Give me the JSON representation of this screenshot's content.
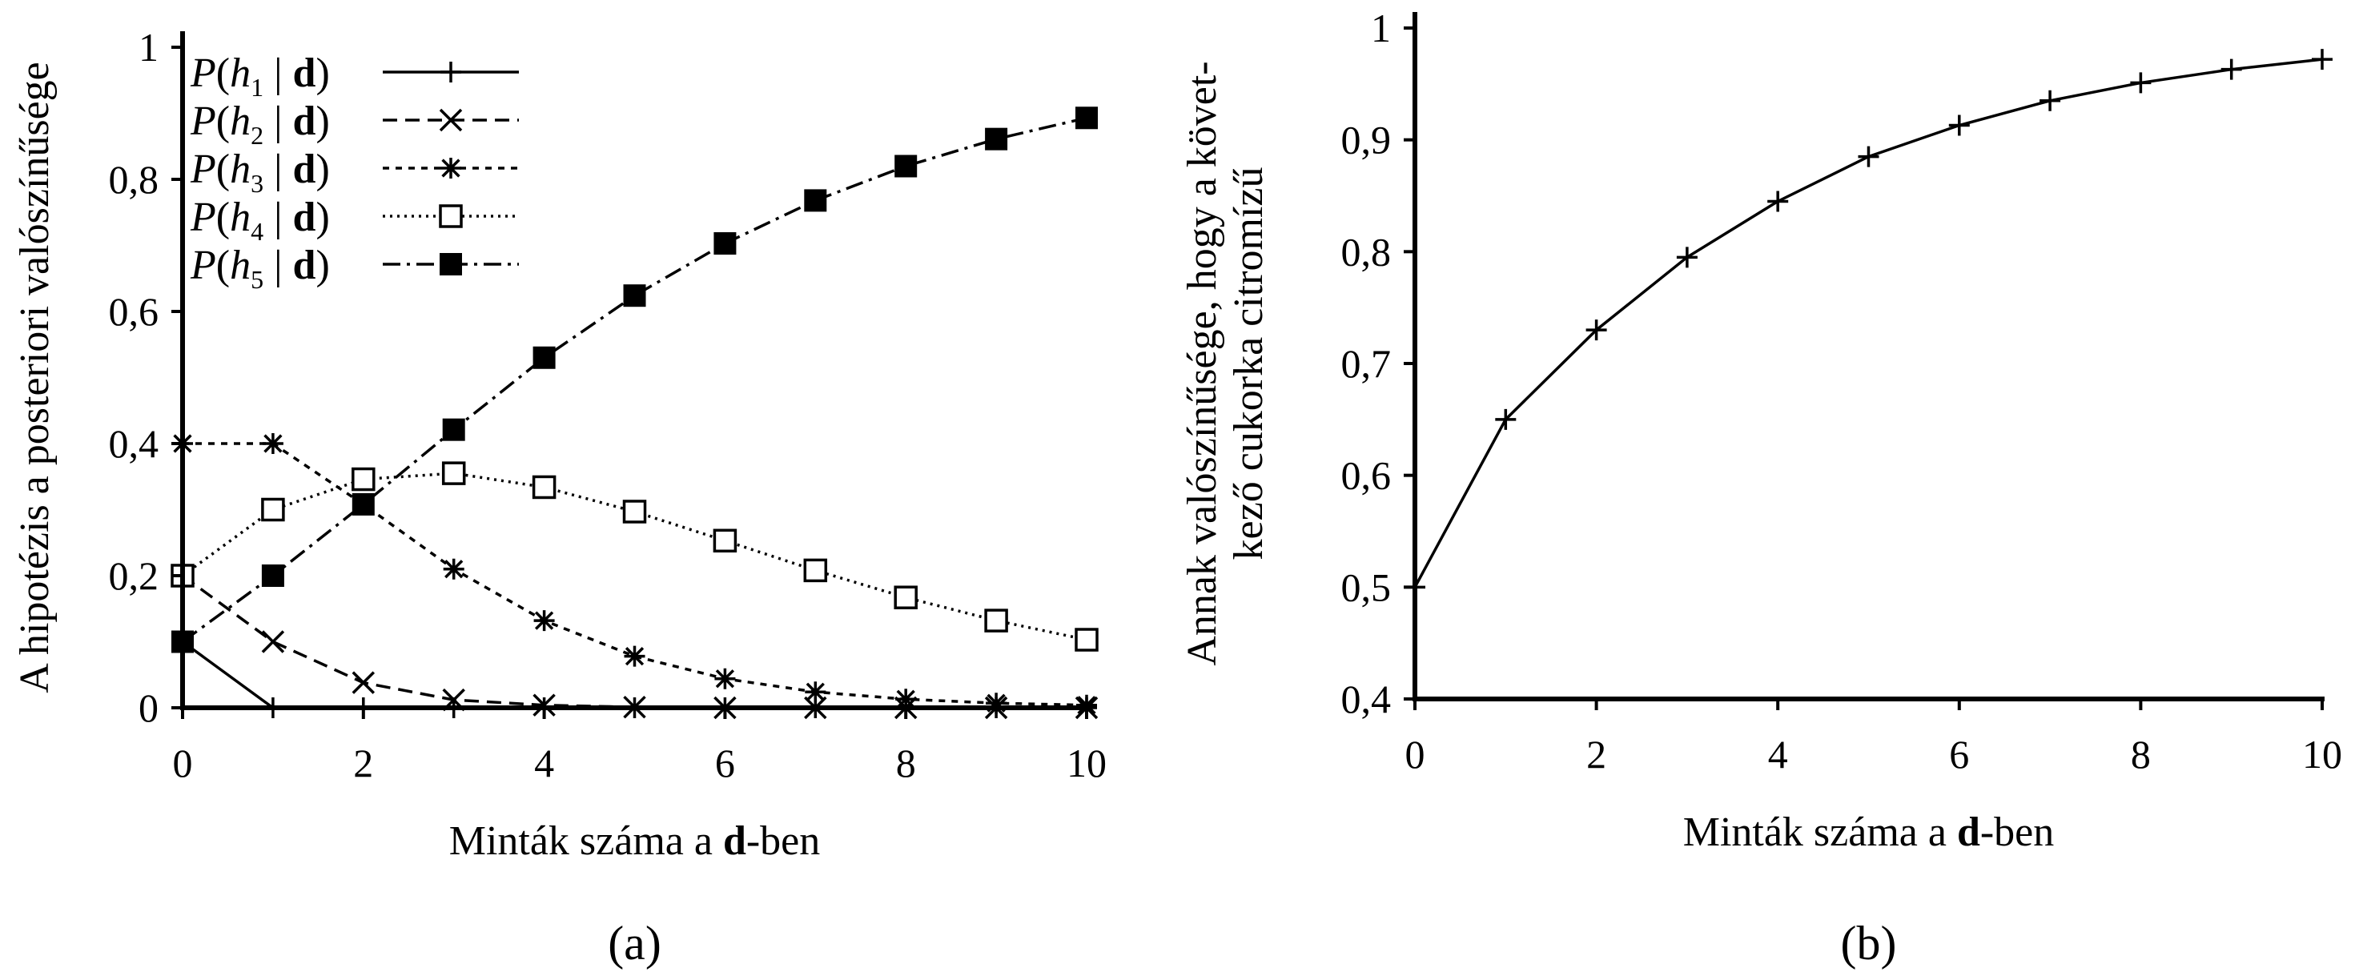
{
  "chart_data": [
    {
      "type": "line",
      "panel_label": "(a)",
      "xlabel_pre": "Minták száma a ",
      "xlabel_bold": "d",
      "xlabel_post": "-ben",
      "ylabel": "A hipotézis a posteriori valószínűsége",
      "xlim": [
        0,
        10
      ],
      "ylim": [
        0,
        1
      ],
      "x_ticks": [
        0,
        2,
        4,
        6,
        8,
        10
      ],
      "y_ticks": [
        "0",
        "0,2",
        "0,4",
        "0,6",
        "0,8",
        "1"
      ],
      "y_tick_values": [
        0,
        0.2,
        0.4,
        0.6,
        0.8,
        1
      ],
      "legend_position": "top-left",
      "x": [
        0,
        1,
        2,
        3,
        4,
        5,
        6,
        7,
        8,
        9,
        10
      ],
      "series": [
        {
          "name": "P(h1 | d)",
          "var": "h",
          "sub": "1",
          "marker": "plus",
          "dash": "",
          "values": [
            0.1,
            0,
            0,
            0,
            0,
            0,
            0,
            0,
            0,
            0,
            0
          ]
        },
        {
          "name": "P(h2 | d)",
          "var": "h",
          "sub": "2",
          "marker": "x",
          "dash": "18,10",
          "values": [
            0.2,
            0.1,
            0.038,
            0.012,
            0.004,
            0.001,
            0,
            0,
            0,
            0,
            0
          ]
        },
        {
          "name": "P(h3 | d)",
          "var": "h",
          "sub": "3",
          "marker": "star",
          "dash": "8,8",
          "values": [
            0.4,
            0.4,
            0.308,
            0.21,
            0.132,
            0.078,
            0.044,
            0.024,
            0.013,
            0.007,
            0.004
          ]
        },
        {
          "name": "P(h4 | d)",
          "var": "h",
          "sub": "4",
          "marker": "square-open",
          "dash": "3,6",
          "values": [
            0.2,
            0.3,
            0.346,
            0.355,
            0.334,
            0.297,
            0.253,
            0.208,
            0.167,
            0.132,
            0.103
          ]
        },
        {
          "name": "P(h5 | d)",
          "var": "h",
          "sub": "5",
          "marker": "square-filled",
          "dash": "22,8,4,8",
          "values": [
            0.1,
            0.2,
            0.308,
            0.421,
            0.53,
            0.624,
            0.703,
            0.768,
            0.82,
            0.861,
            0.893
          ]
        }
      ]
    },
    {
      "type": "line",
      "panel_label": "(b)",
      "xlabel_pre": "Minták száma a ",
      "xlabel_bold": "d",
      "xlabel_post": "-ben",
      "ylabel_line1": "Annak valószínűsége, hogy a követ-",
      "ylabel_line2": "kező cukorka citromízű",
      "xlim": [
        0,
        10
      ],
      "ylim": [
        0.4,
        1
      ],
      "x_ticks": [
        0,
        2,
        4,
        6,
        8,
        10
      ],
      "y_ticks": [
        "0,4",
        "0,5",
        "0,6",
        "0,7",
        "0,8",
        "0,9",
        "1"
      ],
      "y_tick_values": [
        0.4,
        0.5,
        0.6,
        0.7,
        0.8,
        0.9,
        1
      ],
      "x": [
        0,
        1,
        2,
        3,
        4,
        5,
        6,
        7,
        8,
        9,
        10
      ],
      "series": [
        {
          "marker": "plus",
          "dash": "",
          "values": [
            0.5,
            0.65,
            0.73,
            0.795,
            0.845,
            0.885,
            0.913,
            0.935,
            0.951,
            0.963,
            0.972
          ]
        }
      ]
    }
  ]
}
